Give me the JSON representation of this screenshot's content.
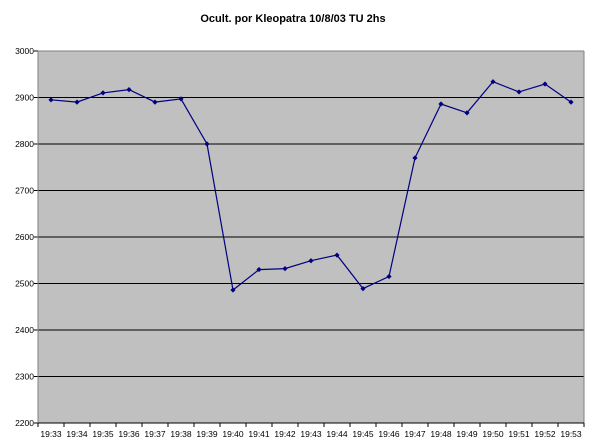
{
  "chart_data": {
    "type": "line",
    "title": "Ocult. por Kleopatra 10/8/03 TU 2hs",
    "xlabel": "",
    "ylabel": "",
    "categories": [
      "19:33",
      "19:34",
      "19:35",
      "19:36",
      "19:37",
      "19:38",
      "19:39",
      "19:40",
      "19:41",
      "19:42",
      "19:43",
      "19:44",
      "19:45",
      "19:46",
      "19:47",
      "19:48",
      "19:49",
      "19:50",
      "19:51",
      "19:52",
      "19:53"
    ],
    "series": [
      {
        "values": [
          2895,
          2890,
          2910,
          2917,
          2890,
          2897,
          2800,
          2486,
          2530,
          2532,
          2549,
          2561,
          2489,
          2515,
          2770,
          2886,
          2867,
          2934,
          2912,
          2929,
          2890
        ]
      }
    ],
    "ylim": [
      2200,
      3000
    ],
    "yticks": [
      2200,
      2300,
      2400,
      2500,
      2600,
      2700,
      2800,
      2900,
      3000
    ],
    "grid": true,
    "legend": "none",
    "colors": {
      "plot_background": "#c0c0c0",
      "series_line": "#000080",
      "gridline": "#000000"
    }
  }
}
